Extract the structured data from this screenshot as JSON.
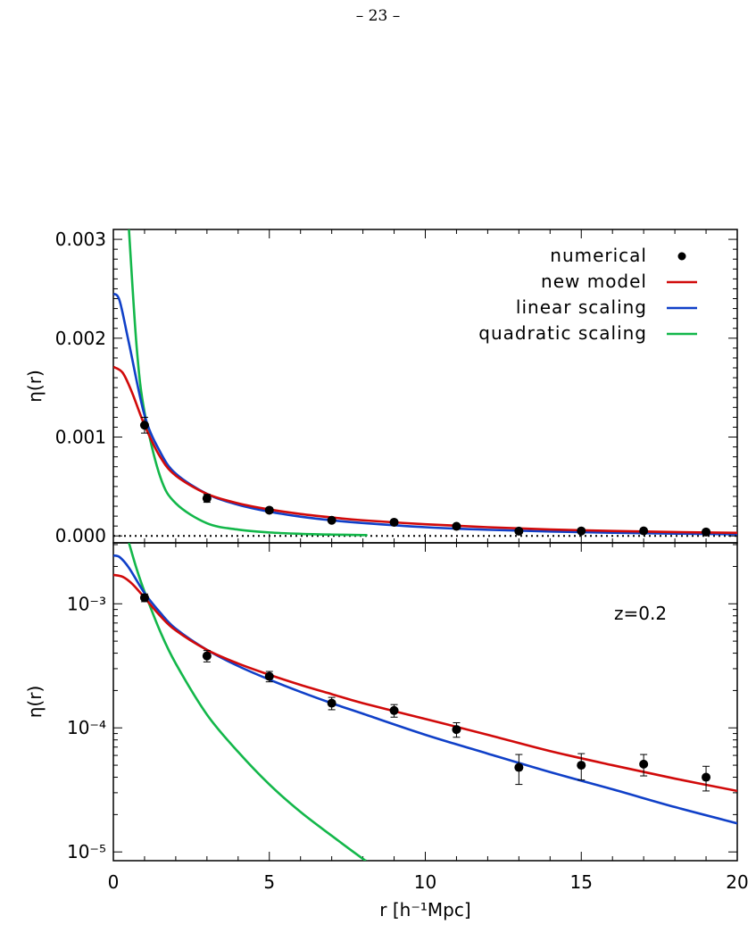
{
  "page_number": "– 23 –",
  "colors": {
    "new_model": "#d10a0a",
    "linear": "#1040c8",
    "quadratic": "#13b74a",
    "data": "#000000"
  },
  "chart_data": [
    {
      "type": "line",
      "panel": "top",
      "ylabel": "η(r)",
      "xlim": [
        0,
        20
      ],
      "ylim": [
        -7e-05,
        0.0031
      ],
      "yscale": "linear",
      "y_ticks": [
        0,
        0.001,
        0.002,
        0.003
      ],
      "y_tick_labels": [
        "0.000",
        "0.001",
        "0.002",
        "0.003"
      ],
      "zero_line": true,
      "legend": {
        "placement": "top-right",
        "entries": [
          {
            "label": "numerical",
            "marker": "dot"
          },
          {
            "label": "new model",
            "color": "#d10a0a"
          },
          {
            "label": "linear scaling",
            "color": "#1040c8"
          },
          {
            "label": "quadratic scaling",
            "color": "#13b74a"
          }
        ]
      }
    },
    {
      "type": "line",
      "panel": "bottom",
      "ylabel": "η(r)",
      "xlabel": "r [h⁻¹Mpc]",
      "xlim": [
        0,
        20
      ],
      "x_ticks": [
        0,
        5,
        10,
        15,
        20
      ],
      "x_tick_labels": [
        "0",
        "5",
        "10",
        "15",
        "20"
      ],
      "yscale": "log",
      "ylim": [
        8.5e-06,
        0.0031
      ],
      "y_tick_labels": [
        "10⁻⁵",
        "10⁻⁴",
        "10⁻³"
      ],
      "annotation": "z=0.2"
    }
  ],
  "series_data": {
    "numerical": {
      "x": [
        1,
        3,
        5,
        7,
        9,
        11,
        13,
        15,
        17,
        19
      ],
      "y": [
        0.00112,
        0.00038,
        0.00026,
        0.000158,
        0.000138,
        9.7e-05,
        4.8e-05,
        5e-05,
        5.1e-05,
        4e-05
      ],
      "err": [
        8e-05,
        4e-05,
        2.5e-05,
        1.8e-05,
        1.6e-05,
        1.3e-05,
        1.3e-05,
        1.2e-05,
        1e-05,
        9e-06
      ]
    },
    "new_model": {
      "x": [
        0,
        0.3,
        0.6,
        1,
        1.5,
        2,
        3,
        4,
        5,
        6,
        7,
        8,
        10,
        12,
        14,
        16,
        18,
        20
      ],
      "y": [
        0.00171,
        0.00165,
        0.00145,
        0.00112,
        0.0008,
        0.00061,
        0.000425,
        0.00033,
        0.000268,
        0.000222,
        0.000187,
        0.000158,
        0.000118,
        8.8e-05,
        6.5e-05,
        5e-05,
        3.9e-05,
        3.1e-05
      ]
    },
    "linear_scaling": {
      "x": [
        0,
        0.2,
        0.5,
        1,
        1.5,
        2,
        3,
        4,
        5,
        6,
        7,
        8,
        10,
        12,
        14,
        16,
        18,
        20
      ],
      "y": [
        0.00245,
        0.00238,
        0.00195,
        0.00122,
        0.00085,
        0.00063,
        0.000425,
        0.000315,
        0.000245,
        0.000195,
        0.000158,
        0.00013,
        8.8e-05,
        6.2e-05,
        4.4e-05,
        3.2e-05,
        2.3e-05,
        1.7e-05
      ]
    },
    "quadratic_scaling": {
      "x": [
        0.5,
        0.75,
        1,
        1.5,
        2,
        3,
        4,
        5,
        6,
        7,
        8,
        8.1
      ],
      "y": [
        0.0031,
        0.0019,
        0.00125,
        0.0006,
        0.00033,
        0.000128,
        6.4e-05,
        3.5e-05,
        2.1e-05,
        1.35e-05,
        8.8e-06,
        8.5e-06
      ]
    }
  },
  "annotation_text": "z=0.2"
}
